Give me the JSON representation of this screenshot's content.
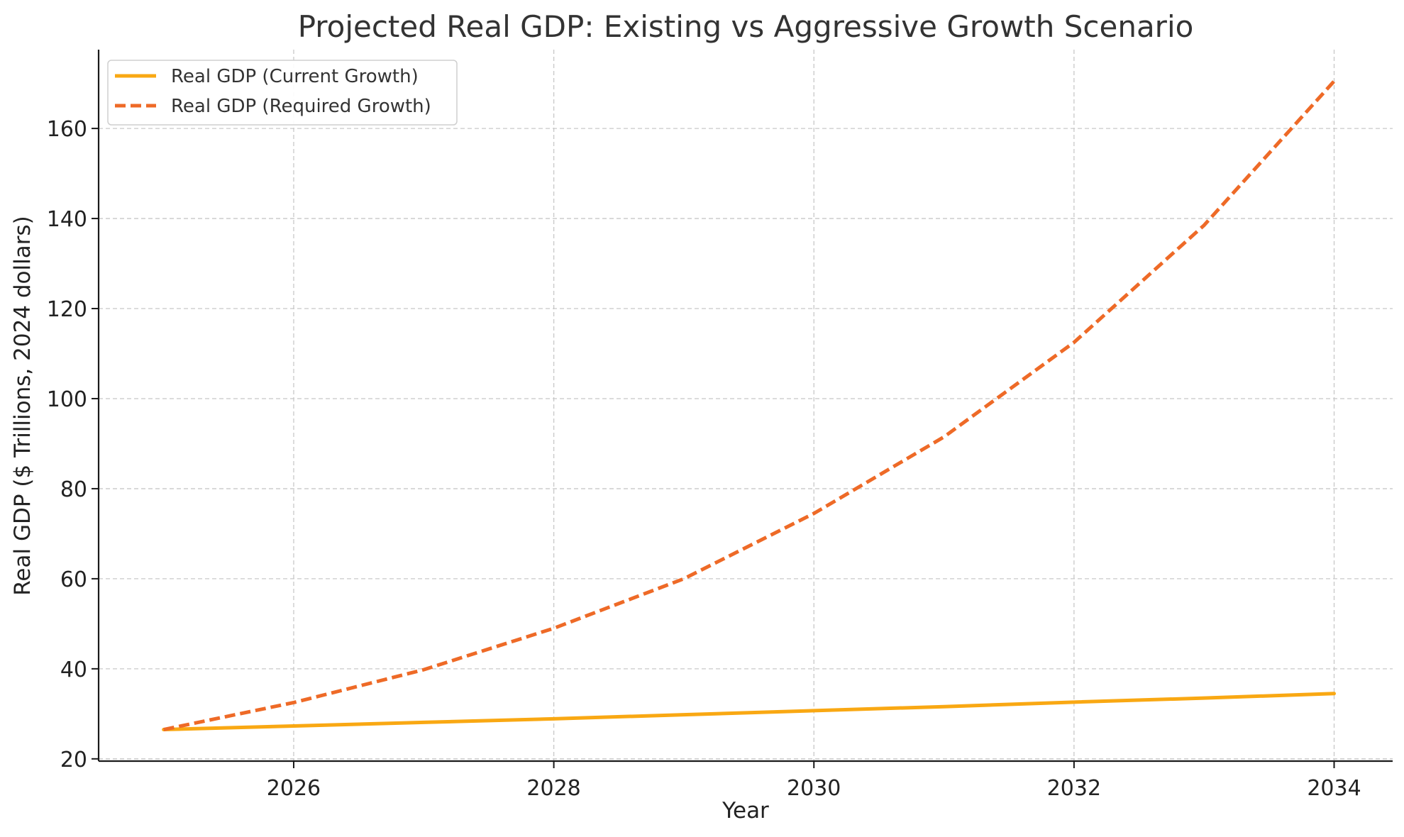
{
  "chart_data": {
    "type": "line",
    "title": "Projected Real GDP: Existing vs Aggressive Growth Scenario",
    "xlabel": "Year",
    "ylabel": "Real GDP ($ Trillions, 2024 dollars)",
    "x": [
      2025,
      2026,
      2027,
      2028,
      2029,
      2030,
      2031,
      2032,
      2033,
      2034
    ],
    "xlim": [
      2024.5,
      2034.45
    ],
    "ylim": [
      19.5,
      177.5
    ],
    "x_ticks": [
      2026,
      2028,
      2030,
      2032,
      2034
    ],
    "y_ticks": [
      20,
      40,
      60,
      80,
      100,
      120,
      140,
      160
    ],
    "grid": true,
    "legend_position": "top-left",
    "series": [
      {
        "name": "Real GDP (Current Growth)",
        "color": "#F9A813",
        "style": "solid",
        "values": [
          26.5,
          27.3,
          28.1,
          28.9,
          29.8,
          30.7,
          31.6,
          32.6,
          33.5,
          34.5
        ]
      },
      {
        "name": "Real GDP (Required Growth)",
        "color": "#EE6A27",
        "style": "dashed",
        "values": [
          26.5,
          32.5,
          39.8,
          49.0,
          60.0,
          74.5,
          91.5,
          112.5,
          138.5,
          170.5
        ]
      }
    ]
  }
}
